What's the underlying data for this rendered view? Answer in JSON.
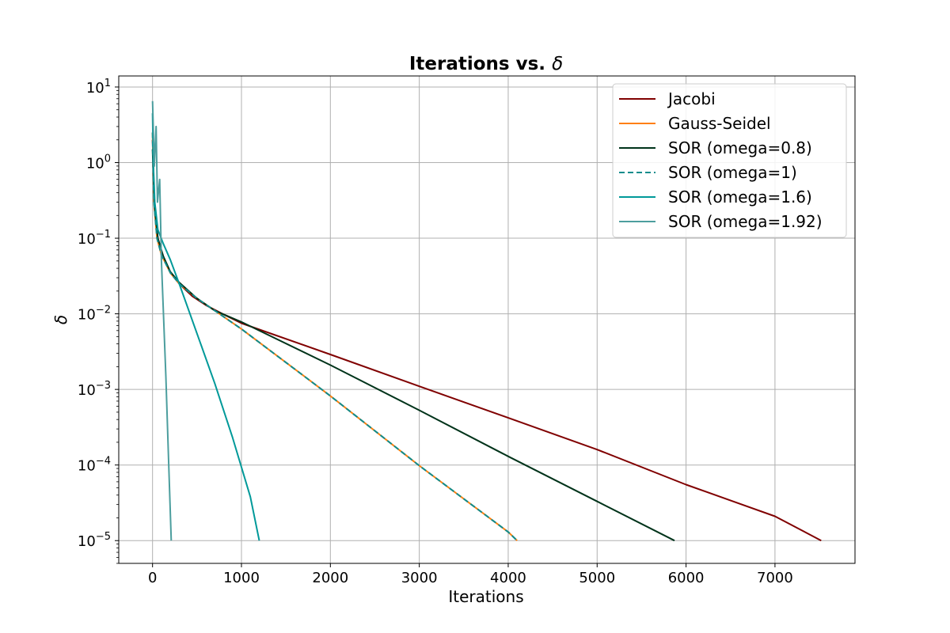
{
  "chart_data": {
    "type": "line",
    "title_text": "Iterations vs. ",
    "title_symbol": "δ",
    "xlabel": "Iterations",
    "ylabel": "δ",
    "y_scale": "log",
    "xlim": [
      -380,
      7900
    ],
    "ylim": [
      5e-06,
      14
    ],
    "x_ticks": [
      0,
      1000,
      2000,
      3000,
      4000,
      5000,
      6000,
      7000
    ],
    "x_tick_labels": [
      "0",
      "1000",
      "2000",
      "3000",
      "4000",
      "5000",
      "6000",
      "7000"
    ],
    "y_ticks": [
      {
        "value": 10,
        "base": "10",
        "exp": "1"
      },
      {
        "value": 1,
        "base": "10",
        "exp": "0"
      },
      {
        "value": 0.1,
        "base": "10",
        "exp": "−1"
      },
      {
        "value": 0.01,
        "base": "10",
        "exp": "−2"
      },
      {
        "value": 0.001,
        "base": "10",
        "exp": "−3"
      },
      {
        "value": 0.0001,
        "base": "10",
        "exp": "−4"
      },
      {
        "value": 1e-05,
        "base": "10",
        "exp": "−5"
      }
    ],
    "grid": true,
    "legend_position": "top-right",
    "series": [
      {
        "name": "Jacobi",
        "color": "#800000",
        "dash": false,
        "points": [
          [
            0,
            2.0
          ],
          [
            20,
            0.3
          ],
          [
            60,
            0.1
          ],
          [
            120,
            0.055
          ],
          [
            200,
            0.035
          ],
          [
            300,
            0.025
          ],
          [
            450,
            0.017
          ],
          [
            600,
            0.013
          ],
          [
            800,
            0.0098
          ],
          [
            1000,
            0.0075
          ],
          [
            2000,
            0.0029
          ],
          [
            3000,
            0.0011
          ],
          [
            4000,
            0.00042
          ],
          [
            5000,
            0.00016
          ],
          [
            6000,
            5.5e-05
          ],
          [
            7000,
            2.1e-05
          ],
          [
            7520,
            1e-05
          ]
        ]
      },
      {
        "name": "Gauss-Seidel",
        "color": "#ff7f0e",
        "dash": false,
        "points": [
          [
            0,
            2.5
          ],
          [
            15,
            0.3
          ],
          [
            50,
            0.1
          ],
          [
            100,
            0.06
          ],
          [
            200,
            0.035
          ],
          [
            300,
            0.025
          ],
          [
            500,
            0.016
          ],
          [
            700,
            0.011
          ],
          [
            1000,
            0.0063
          ],
          [
            2000,
            0.00082
          ],
          [
            3000,
            9.8e-05
          ],
          [
            4000,
            1.3e-05
          ],
          [
            4100,
            1e-05
          ]
        ]
      },
      {
        "name": "SOR (omega=0.8)",
        "color": "#00331a",
        "dash": false,
        "points": [
          [
            0,
            1.5
          ],
          [
            20,
            0.28
          ],
          [
            60,
            0.1
          ],
          [
            120,
            0.058
          ],
          [
            200,
            0.036
          ],
          [
            300,
            0.026
          ],
          [
            500,
            0.016
          ],
          [
            700,
            0.011
          ],
          [
            1000,
            0.0078
          ],
          [
            2000,
            0.0021
          ],
          [
            3000,
            0.00053
          ],
          [
            4000,
            0.00013
          ],
          [
            5000,
            3.3e-05
          ],
          [
            5870,
            1e-05
          ]
        ]
      },
      {
        "name": "SOR (omega=1)",
        "color": "#0e8c8c",
        "dash": true,
        "points": [
          [
            0,
            2.5
          ],
          [
            15,
            0.3
          ],
          [
            50,
            0.1
          ],
          [
            100,
            0.06
          ],
          [
            200,
            0.035
          ],
          [
            300,
            0.025
          ],
          [
            500,
            0.016
          ],
          [
            700,
            0.011
          ],
          [
            1000,
            0.0063
          ],
          [
            2000,
            0.00082
          ],
          [
            3000,
            9.8e-05
          ],
          [
            4000,
            1.3e-05
          ],
          [
            4100,
            1e-05
          ]
        ]
      },
      {
        "name": "SOR (omega=1.6)",
        "color": "#009999",
        "dash": false,
        "points": [
          [
            0,
            4.5
          ],
          [
            8,
            1.0
          ],
          [
            25,
            0.3
          ],
          [
            60,
            0.13
          ],
          [
            120,
            0.085
          ],
          [
            200,
            0.052
          ],
          [
            300,
            0.025
          ],
          [
            500,
            0.0055
          ],
          [
            700,
            0.0012
          ],
          [
            900,
            0.00023
          ],
          [
            1100,
            3.8e-05
          ],
          [
            1200,
            1e-05
          ]
        ]
      },
      {
        "name": "SOR (omega=1.92)",
        "color": "#4c9e9e",
        "dash": false,
        "points": [
          [
            0,
            6.5
          ],
          [
            20,
            0.9
          ],
          [
            40,
            3.0
          ],
          [
            55,
            0.3
          ],
          [
            80,
            0.6
          ],
          [
            100,
            0.05
          ],
          [
            150,
            0.0015
          ],
          [
            180,
            0.00012
          ],
          [
            210,
            1e-05
          ]
        ]
      }
    ]
  }
}
